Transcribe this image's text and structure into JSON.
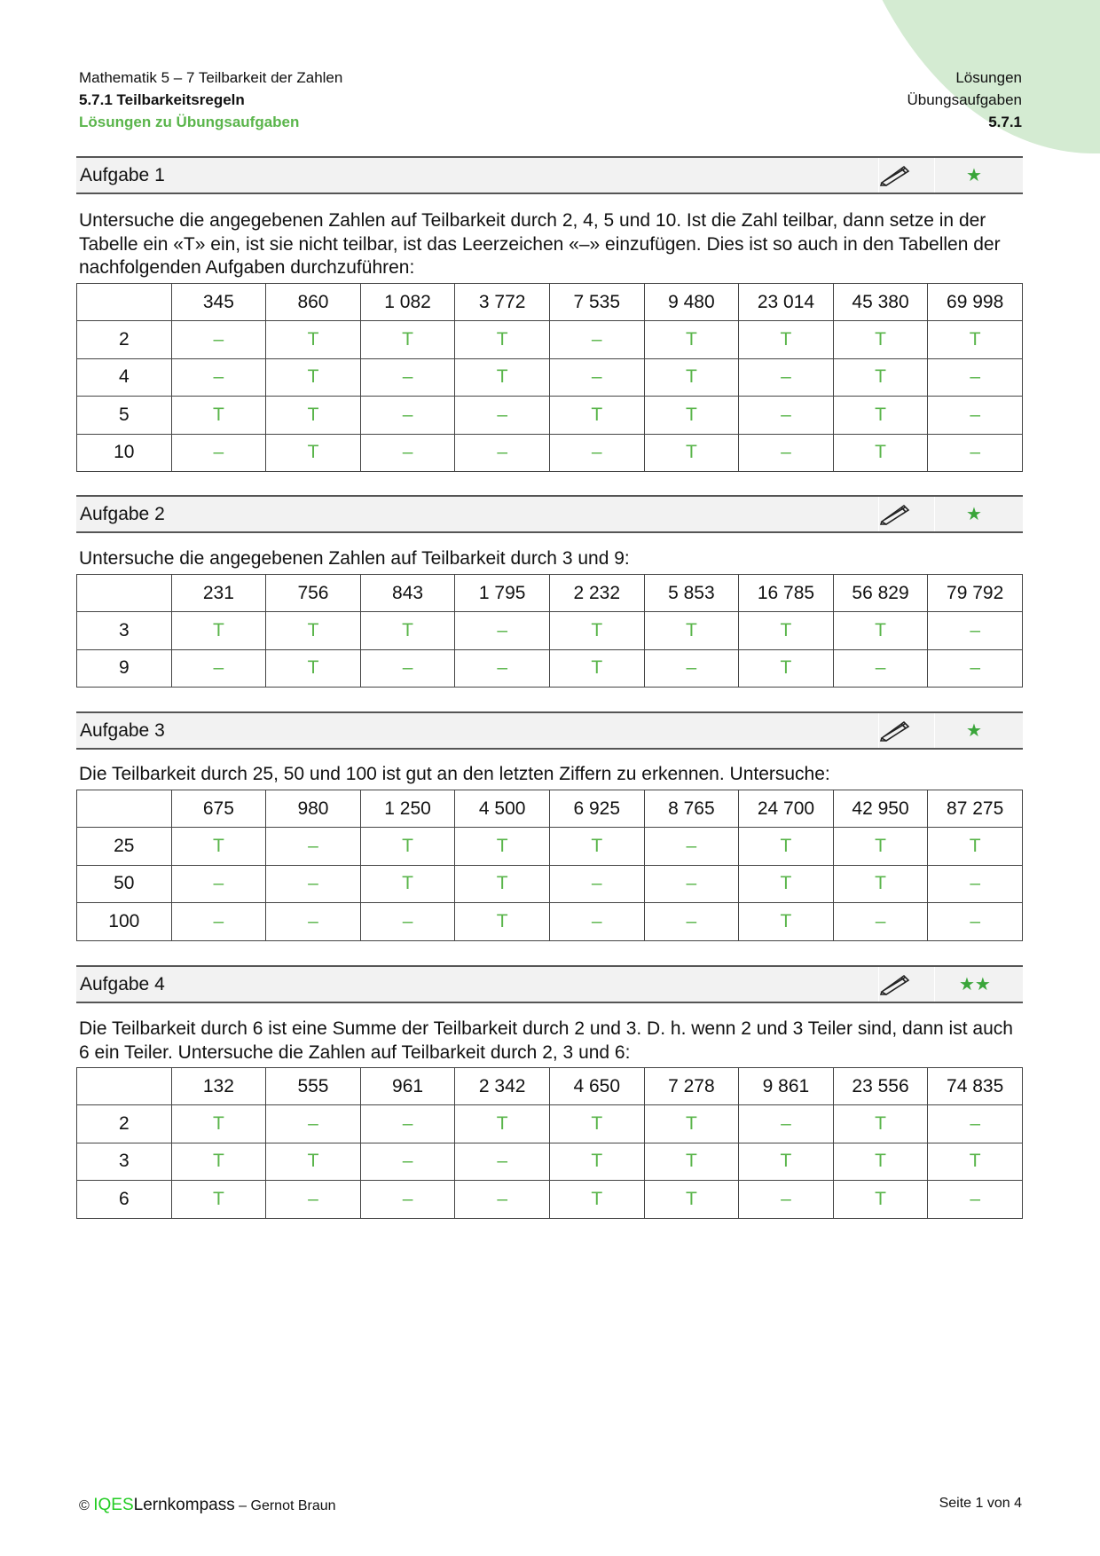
{
  "header": {
    "line1": "Mathematik 5 – 7 Teilbarkeit der Zahlen",
    "line2": "5.7.1 Teilbarkeitsregeln",
    "line3": "Lösungen zu Übungsaufgaben",
    "right1": "Lösungen",
    "right2": "Übungsaufgaben",
    "right3": "5.7.1"
  },
  "colors": {
    "accent": "#5ab54b",
    "blob": "#d4ebd2"
  },
  "tasks": [
    {
      "title": "Aufgabe 1",
      "stars": "★",
      "text": "Untersuche die angegebenen Zahlen auf Teilbarkeit durch 2, 4, 5 und 10. Ist die Zahl teilbar, dann setze in der Tabelle ein «T» ein, ist sie nicht teilbar, ist das Leerzeichen «–» einzufügen. Dies ist so auch in den Tabellen der nachfolgenden Aufgaben durchzuführen:",
      "columns": [
        "345",
        "860",
        "1 082",
        "3 772",
        "7 535",
        "9 480",
        "23 014",
        "45 380",
        "69 998"
      ],
      "rows": [
        {
          "label": "2",
          "cells": [
            "–",
            "T",
            "T",
            "T",
            "–",
            "T",
            "T",
            "T",
            "T"
          ]
        },
        {
          "label": "4",
          "cells": [
            "–",
            "T",
            "–",
            "T",
            "–",
            "T",
            "–",
            "T",
            "–"
          ]
        },
        {
          "label": "5",
          "cells": [
            "T",
            "T",
            "–",
            "–",
            "T",
            "T",
            "–",
            "T",
            "–"
          ]
        },
        {
          "label": "10",
          "cells": [
            "–",
            "T",
            "–",
            "–",
            "–",
            "T",
            "–",
            "T",
            "–"
          ]
        }
      ]
    },
    {
      "title": "Aufgabe 2",
      "stars": "★",
      "text": "Untersuche die angegebenen Zahlen auf Teilbarkeit durch 3 und 9:",
      "columns": [
        "231",
        "756",
        "843",
        "1 795",
        "2 232",
        "5 853",
        "16 785",
        "56 829",
        "79 792"
      ],
      "rows": [
        {
          "label": "3",
          "cells": [
            "T",
            "T",
            "T",
            "–",
            "T",
            "T",
            "T",
            "T",
            "–"
          ]
        },
        {
          "label": "9",
          "cells": [
            "–",
            "T",
            "–",
            "–",
            "T",
            "–",
            "T",
            "–",
            "–"
          ]
        }
      ]
    },
    {
      "title": "Aufgabe 3",
      "stars": "★",
      "text": "Die Teilbarkeit durch 25, 50 und 100 ist gut an den letzten Ziffern zu erkennen. Untersuche:",
      "columns": [
        "675",
        "980",
        "1 250",
        "4 500",
        "6 925",
        "8 765",
        "24 700",
        "42 950",
        "87 275"
      ],
      "rows": [
        {
          "label": "25",
          "cells": [
            "T",
            "–",
            "T",
            "T",
            "T",
            "–",
            "T",
            "T",
            "T"
          ]
        },
        {
          "label": "50",
          "cells": [
            "–",
            "–",
            "T",
            "T",
            "–",
            "–",
            "T",
            "T",
            "–"
          ]
        },
        {
          "label": "100",
          "cells": [
            "–",
            "–",
            "–",
            "T",
            "–",
            "–",
            "T",
            "–",
            "–"
          ]
        }
      ]
    },
    {
      "title": "Aufgabe 4",
      "stars": "★★",
      "text": "Die Teilbarkeit durch 6 ist eine Summe der Teilbarkeit durch 2 und 3. D. h. wenn 2 und 3 Teiler sind, dann ist auch 6 ein Teiler. Untersuche die Zahlen auf Teilbarkeit durch 2, 3 und 6:",
      "columns": [
        "132",
        "555",
        "961",
        "2 342",
        "4 650",
        "7 278",
        "9 861",
        "23 556",
        "74 835"
      ],
      "rows": [
        {
          "label": "2",
          "cells": [
            "T",
            "–",
            "–",
            "T",
            "T",
            "T",
            "–",
            "T",
            "–"
          ]
        },
        {
          "label": "3",
          "cells": [
            "T",
            "T",
            "–",
            "–",
            "T",
            "T",
            "T",
            "T",
            "T"
          ]
        },
        {
          "label": "6",
          "cells": [
            "T",
            "–",
            "–",
            "–",
            "T",
            "T",
            "–",
            "T",
            "–"
          ]
        }
      ]
    }
  ],
  "footer": {
    "copyright": "©",
    "brand_a": "IQES",
    "brand_b": "Lernkompass",
    "author": " – Gernot Braun",
    "page": "Seite 1 von 4"
  }
}
